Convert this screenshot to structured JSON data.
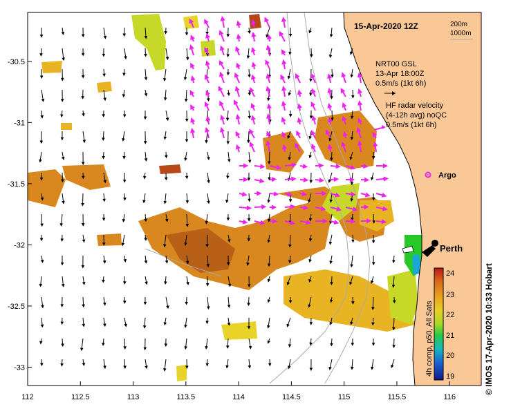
{
  "title": "15-Apr-2020 12Z",
  "depth_legend": {
    "line1": "200m",
    "line2": "1000m"
  },
  "gsl": {
    "line1": "NRT00 GSL",
    "line2": "13-Apr 18:00Z",
    "line3": "0.5m/s (1kt 6h)"
  },
  "hf": {
    "line1": "HF radar velocity",
    "line2": "(4-12h avg) noQC",
    "line3": "0.5m/s (1kt 6h)"
  },
  "argo_label": "Argo",
  "city_label": "Perth",
  "colorbar": {
    "label": "4h comp, p50, All Sats",
    "min": 19,
    "max": 24,
    "ticks": [
      "24",
      "23",
      "22",
      "21",
      "20",
      "19"
    ]
  },
  "copyright": "© IMOS 17-Apr-2020 10:33 Hobart",
  "axes": {
    "lon_min": 112.0,
    "lon_max": 116.3,
    "lat_min": -33.15,
    "lat_max": -30.1,
    "x_ticks": [
      "112",
      "112.5",
      "113",
      "113.5",
      "114",
      "114.5",
      "115",
      "115.5",
      "116"
    ],
    "y_ticks": [
      "-30.5",
      "-31",
      "-31.5",
      "-32",
      "-32.5",
      "-33"
    ]
  },
  "colors": {
    "land": "#fac896",
    "hf_arrow": "#ee22ee",
    "gsl_arrow": "#000000",
    "sst_warm": "#d8881e",
    "sst_hot": "#b86016",
    "sst_mid": "#e8b424",
    "sst_green": "#c8d828"
  }
}
